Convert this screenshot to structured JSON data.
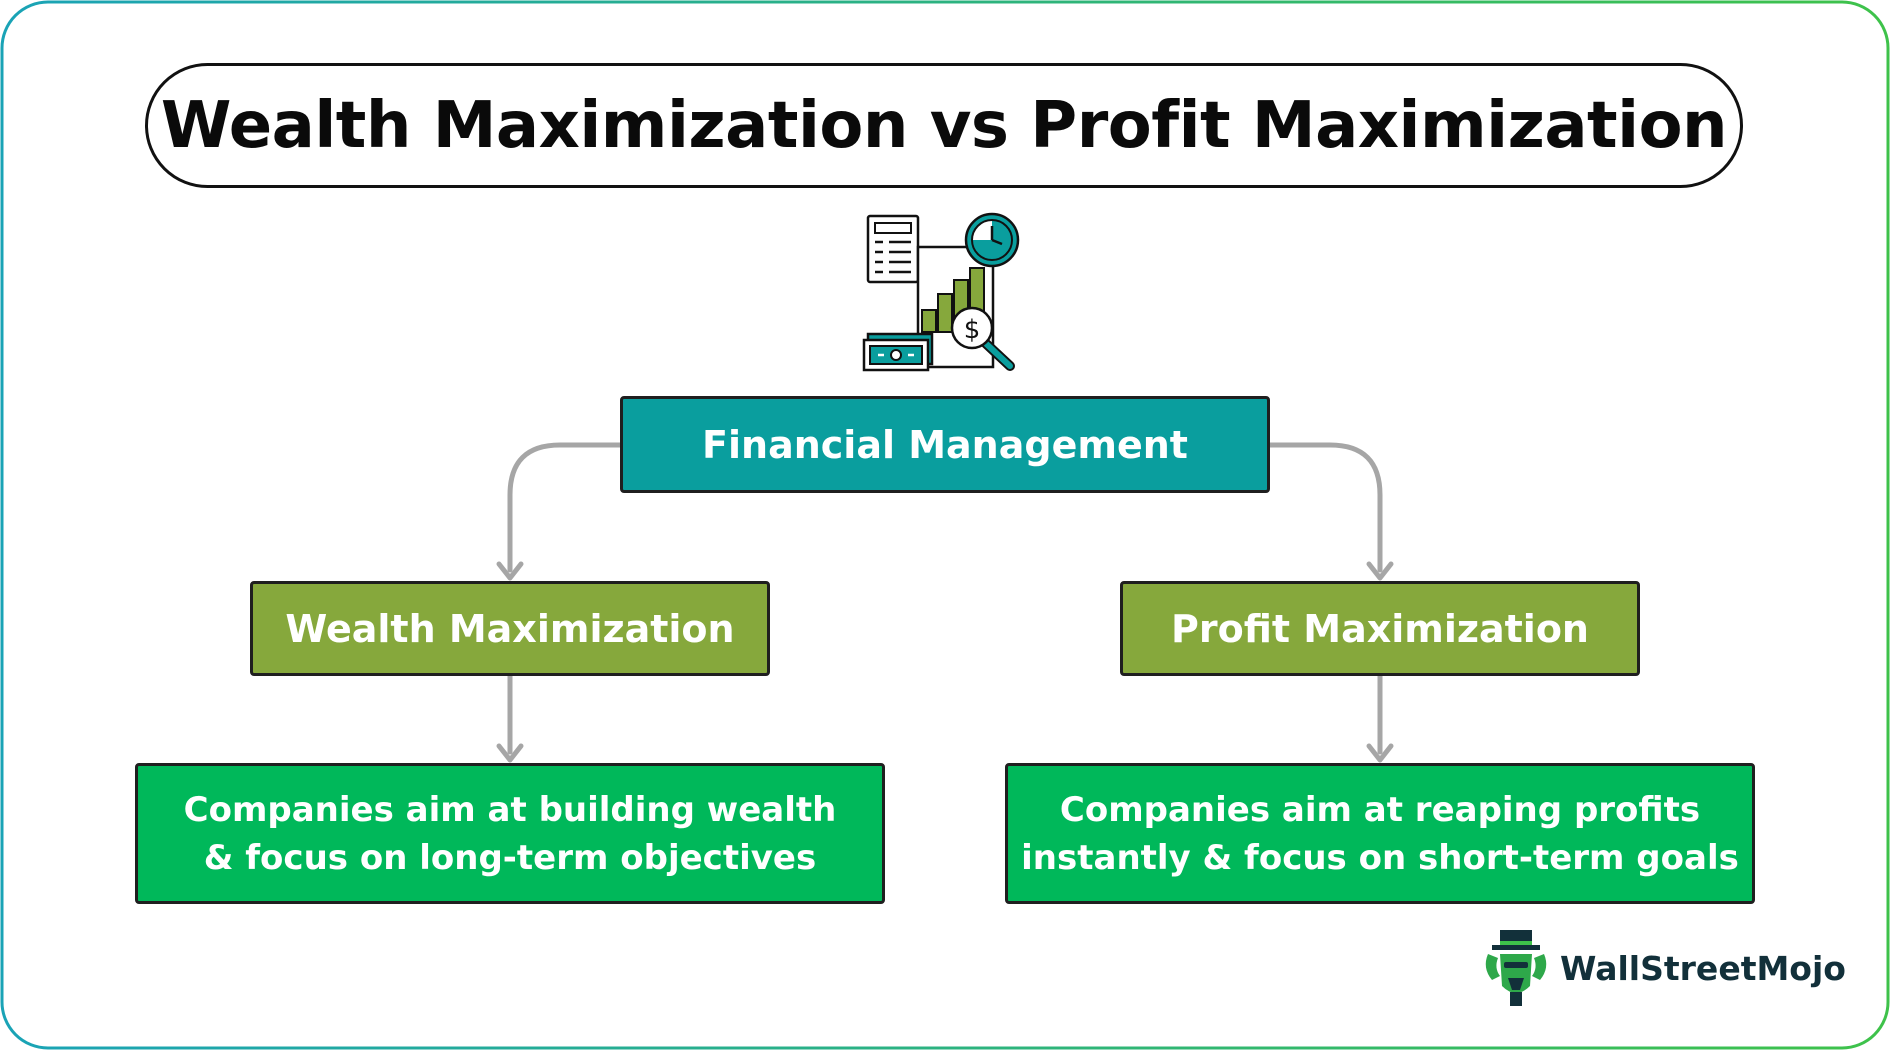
{
  "title": "Wealth Maximization vs Profit Maximization",
  "root": {
    "label": "Financial Management"
  },
  "branches": [
    {
      "label": "Wealth Maximization",
      "description_lines": [
        "Companies aim at building wealth",
        "& focus on long-term objectives"
      ]
    },
    {
      "label": "Profit Maximization",
      "description_lines": [
        "Companies aim at reaping profits",
        "instantly & focus on short-term goals"
      ]
    }
  ],
  "brand": {
    "name": "WallStreetMojo"
  },
  "colors": {
    "root_fill": "#0a9e9e",
    "branch_fill": "#86a83c",
    "description_fill": "#00b85a",
    "connector": "#a6a6a6",
    "frame_gradient_start": "#1aa3b6",
    "frame_gradient_end": "#3ec24a"
  }
}
